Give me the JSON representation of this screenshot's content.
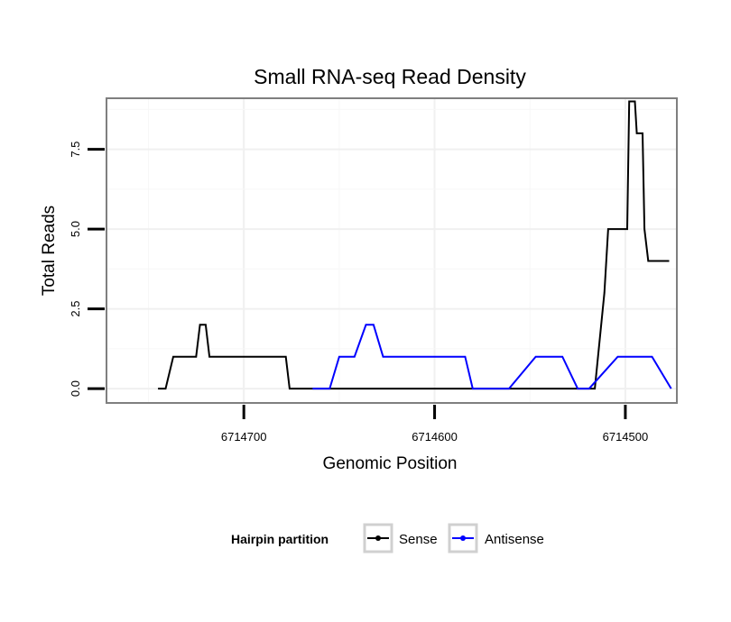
{
  "chart_data": {
    "type": "line",
    "title": "Small RNA-seq Read Density",
    "xlabel": "Genomic Position",
    "ylabel": "Total Reads",
    "x_reversed": true,
    "xlim": [
      6714772,
      6714473
    ],
    "ylim": [
      -0.45,
      9.1
    ],
    "x_ticks": [
      6714700,
      6714600,
      6714500
    ],
    "x_tick_labels": [
      "6714700",
      "6714600",
      "6714500"
    ],
    "y_ticks": [
      0,
      2.5,
      5,
      7.5
    ],
    "y_tick_labels": [
      "0.0",
      "2.5",
      "5.0",
      "7.5"
    ],
    "grid": true,
    "legend": {
      "title": "Hairpin partition",
      "position": "bottom",
      "entries": [
        "Sense",
        "Antisense"
      ]
    },
    "series": [
      {
        "name": "Sense",
        "color": "#000000",
        "x": [
          6714745,
          6714741,
          6714737,
          6714725,
          6714723,
          6714720,
          6714718,
          6714678,
          6714676,
          6714516,
          6714511,
          6714509,
          6714499,
          6714498,
          6714495,
          6714494,
          6714491,
          6714490,
          6714488,
          6714477
        ],
        "y": [
          0,
          0,
          1,
          1,
          2,
          2,
          1,
          1,
          0,
          0,
          3,
          5,
          5,
          9,
          9,
          8,
          8,
          5,
          4,
          4
        ]
      },
      {
        "name": "Antisense",
        "color": "#0000ff",
        "x": [
          6714664,
          6714655,
          6714650,
          6714642,
          6714636,
          6714632,
          6714627,
          6714584,
          6714580,
          6714561,
          6714547,
          6714533,
          6714525,
          6714519,
          6714504,
          6714486,
          6714476
        ],
        "y": [
          0,
          0,
          1,
          1,
          2,
          2,
          1,
          1,
          0,
          0,
          1,
          1,
          0,
          0,
          1,
          1,
          0
        ]
      }
    ]
  }
}
